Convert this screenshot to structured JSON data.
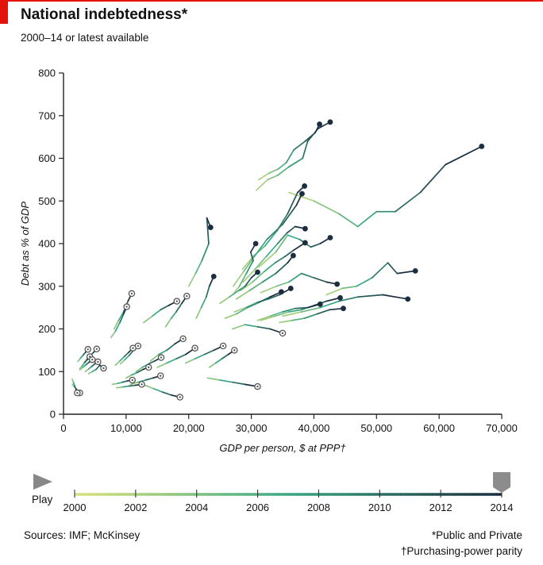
{
  "header": {
    "title": "National indebtedness*",
    "subtitle": "2000–14 or latest available"
  },
  "colors": {
    "accent_red": "#e3120b",
    "start_color": "#d9e27c",
    "mid_color": "#3aa883",
    "end_color": "#1b2e40",
    "axis_color": "#222222"
  },
  "controls": {
    "play_label": "Play",
    "play_icon": "play-triangle-icon",
    "slider_icon": "slider-handle-icon",
    "timeline_ticks": [
      "2000",
      "2002",
      "2004",
      "2006",
      "2008",
      "2010",
      "2012",
      "2014"
    ],
    "selected_year": "2014"
  },
  "footer": {
    "source": "Sources: IMF; McKinsey",
    "note_public_private": "*Public and Private",
    "note_ppp": "†Purchasing-power parity"
  },
  "chart_data": {
    "type": "line",
    "title": "National indebtedness*",
    "subtitle": "2000–14 or latest available",
    "xlabel": "GDP per person, $ at PPP†",
    "ylabel": "Debt as % of GDP",
    "xlim": [
      0,
      70000
    ],
    "ylim": [
      0,
      800
    ],
    "xticks": [
      "0",
      "10,000",
      "20,000",
      "30,000",
      "40,000",
      "50,000",
      "60,000",
      "70,000"
    ],
    "yticks": [
      "0",
      "100",
      "200",
      "300",
      "400",
      "500",
      "600",
      "700",
      "800"
    ],
    "color_scale": {
      "start_year": 2000,
      "end_year": 2014
    },
    "grid": false,
    "series": [
      {
        "x": [
          42600,
          40700,
          39000,
          38200,
          36000,
          34200,
          32600,
          30800
        ],
        "y": [
          685,
          670,
          640,
          600,
          580,
          560,
          550,
          525
        ]
      },
      {
        "x": [
          40900,
          40200,
          38600,
          36800,
          35600,
          34300,
          32800,
          31200
        ],
        "y": [
          680,
          660,
          640,
          620,
          590,
          575,
          565,
          550
        ]
      },
      {
        "x": [
          66800,
          61000,
          57000,
          53000,
          50000,
          47000,
          44000,
          40000,
          36000
        ],
        "y": [
          628,
          585,
          520,
          475,
          475,
          440,
          470,
          500,
          520
        ]
      },
      {
        "x": [
          38500,
          37400,
          35800,
          34100,
          32200,
          30300,
          28600
        ],
        "y": [
          535,
          520,
          470,
          430,
          395,
          370,
          340
        ]
      },
      {
        "x": [
          38100,
          37200,
          35000,
          32500,
          30500,
          28800,
          27100
        ],
        "y": [
          517,
          490,
          445,
          410,
          370,
          335,
          300
        ]
      },
      {
        "x": [
          23500,
          22900,
          23200,
          22100,
          21100,
          20000
        ],
        "y": [
          438,
          460,
          400,
          360,
          330,
          300
        ]
      },
      {
        "x": [
          42600,
          41000,
          39500,
          37700,
          35800,
          33900,
          31200
        ],
        "y": [
          414,
          400,
          392,
          410,
          420,
          380,
          345
        ]
      },
      {
        "x": [
          38600,
          36800,
          35400,
          33800,
          32100,
          30200,
          28300
        ],
        "y": [
          402,
          385,
          370,
          355,
          335,
          310,
          290
        ]
      },
      {
        "x": [
          38600,
          37000,
          35700,
          34200,
          32400,
          30600,
          28700
        ],
        "y": [
          435,
          440,
          425,
          400,
          370,
          340,
          310
        ]
      },
      {
        "x": [
          30700,
          29900,
          30300,
          29200,
          28100,
          27000
        ],
        "y": [
          400,
          380,
          360,
          330,
          300,
          280
        ]
      },
      {
        "x": [
          36700,
          35800,
          33900,
          31800,
          29700,
          27600
        ],
        "y": [
          372,
          355,
          330,
          310,
          290,
          270
        ]
      },
      {
        "x": [
          56200,
          53300,
          51800,
          49300,
          46800,
          44500,
          42000
        ],
        "y": [
          336,
          330,
          355,
          320,
          300,
          295,
          280
        ]
      },
      {
        "x": [
          43700,
          42000,
          40000,
          38000,
          36000,
          34000,
          31500
        ],
        "y": [
          305,
          310,
          320,
          330,
          310,
          300,
          285
        ]
      },
      {
        "x": [
          31000,
          30000,
          29000,
          28000,
          26500,
          25000
        ],
        "y": [
          333,
          320,
          300,
          290,
          275,
          260
        ]
      },
      {
        "x": [
          55000,
          51000,
          47000,
          44000,
          41000,
          38000,
          35000
        ],
        "y": [
          270,
          280,
          275,
          265,
          250,
          240,
          230
        ]
      },
      {
        "x": [
          44200,
          42000,
          40000,
          38000,
          36000,
          33800,
          31500
        ],
        "y": [
          273,
          265,
          255,
          245,
          240,
          230,
          220
        ]
      },
      {
        "x": [
          44700,
          42500,
          40500,
          38500,
          36500,
          34500
        ],
        "y": [
          248,
          245,
          235,
          225,
          220,
          215
        ]
      },
      {
        "x": [
          41000,
          39000,
          37000,
          35000,
          33000,
          31000
        ],
        "y": [
          258,
          250,
          248,
          240,
          230,
          220
        ]
      },
      {
        "x": [
          36300,
          34500,
          32700,
          30900,
          29100,
          27300
        ],
        "y": [
          295,
          280,
          270,
          262,
          250,
          240
        ]
      },
      {
        "x": [
          34800,
          33000,
          31200,
          29400,
          27600,
          25800
        ],
        "y": [
          287,
          275,
          262,
          250,
          235,
          225
        ]
      },
      {
        "x": [
          24000,
          23300,
          22800,
          22000,
          21200
        ],
        "y": [
          323,
          300,
          275,
          250,
          225
        ]
      },
      {
        "x": [
          10900,
          10300,
          9600,
          8800,
          8100
        ],
        "y": [
          283,
          265,
          240,
          220,
          200
        ]
      },
      {
        "x": [
          10100,
          9600,
          9000,
          8300,
          7600
        ],
        "y": [
          252,
          235,
          215,
          195,
          180
        ]
      },
      {
        "x": [
          19700,
          18900,
          18000,
          17200,
          16300
        ],
        "y": [
          277,
          260,
          240,
          225,
          205
        ]
      },
      {
        "x": [
          18100,
          16800,
          15500,
          14200,
          12800
        ],
        "y": [
          265,
          255,
          245,
          230,
          215
        ]
      },
      {
        "x": [
          25500,
          24000,
          22500,
          21000,
          19500
        ],
        "y": [
          160,
          150,
          140,
          130,
          120
        ]
      },
      {
        "x": [
          27300,
          26300,
          25300,
          24300,
          23300
        ],
        "y": [
          150,
          140,
          130,
          120,
          110
        ]
      },
      {
        "x": [
          21000,
          19500,
          18000,
          16500,
          15000
        ],
        "y": [
          155,
          140,
          130,
          120,
          110
        ]
      },
      {
        "x": [
          19100,
          17800,
          16500,
          15200,
          13900
        ],
        "y": [
          177,
          165,
          150,
          140,
          125
        ]
      },
      {
        "x": [
          35000,
          33000,
          31000,
          29000,
          27000
        ],
        "y": [
          190,
          200,
          205,
          210,
          200
        ]
      },
      {
        "x": [
          15600,
          14600,
          13600,
          12600,
          11600
        ],
        "y": [
          133,
          125,
          118,
          110,
          100
        ]
      },
      {
        "x": [
          13600,
          12700,
          11800,
          10900,
          10000
        ],
        "y": [
          110,
          105,
          98,
          92,
          85
        ]
      },
      {
        "x": [
          11900,
          11200,
          10500,
          9800,
          9100
        ],
        "y": [
          160,
          150,
          138,
          128,
          118
        ]
      },
      {
        "x": [
          11100,
          10400,
          9700,
          9000,
          8300
        ],
        "y": [
          155,
          145,
          135,
          125,
          115
        ]
      },
      {
        "x": [
          15500,
          14300,
          13100,
          11900,
          10700
        ],
        "y": [
          90,
          85,
          80,
          75,
          70
        ]
      },
      {
        "x": [
          18600,
          17200,
          15800,
          14400,
          13000
        ],
        "y": [
          40,
          45,
          52,
          60,
          68
        ]
      },
      {
        "x": [
          31000,
          29000,
          27000,
          25000,
          23000
        ],
        "y": [
          65,
          70,
          75,
          80,
          85
        ]
      },
      {
        "x": [
          11000,
          10200,
          9400,
          8600,
          7800
        ],
        "y": [
          80,
          78,
          75,
          72,
          70
        ]
      },
      {
        "x": [
          12500,
          11500,
          10500,
          9500,
          8500
        ],
        "y": [
          70,
          68,
          66,
          64,
          62
        ]
      },
      {
        "x": [
          6400,
          5800,
          5200,
          4600,
          4000
        ],
        "y": [
          108,
          115,
          105,
          100,
          95
        ]
      },
      {
        "x": [
          5500,
          5000,
          4500,
          4000,
          3500
        ],
        "y": [
          123,
          118,
          112,
          106,
          100
        ]
      },
      {
        "x": [
          5300,
          4800,
          4300,
          3800,
          3300
        ],
        "y": [
          153,
          145,
          138,
          130,
          122
        ]
      },
      {
        "x": [
          3900,
          3500,
          3100,
          2700,
          2300
        ],
        "y": [
          152,
          145,
          138,
          131,
          124
        ]
      },
      {
        "x": [
          4200,
          3800,
          3400,
          3000,
          2600
        ],
        "y": [
          135,
          128,
          121,
          114,
          107
        ]
      },
      {
        "x": [
          4600,
          4100,
          3600,
          3100,
          2600
        ],
        "y": [
          128,
          122,
          116,
          110,
          104
        ]
      },
      {
        "x": [
          2600,
          2300,
          2000,
          1700,
          1400
        ],
        "y": [
          50,
          55,
          60,
          65,
          70
        ]
      },
      {
        "x": [
          2200,
          2000,
          1800,
          1600,
          1400
        ],
        "y": [
          50,
          58,
          66,
          74,
          82
        ]
      }
    ]
  }
}
